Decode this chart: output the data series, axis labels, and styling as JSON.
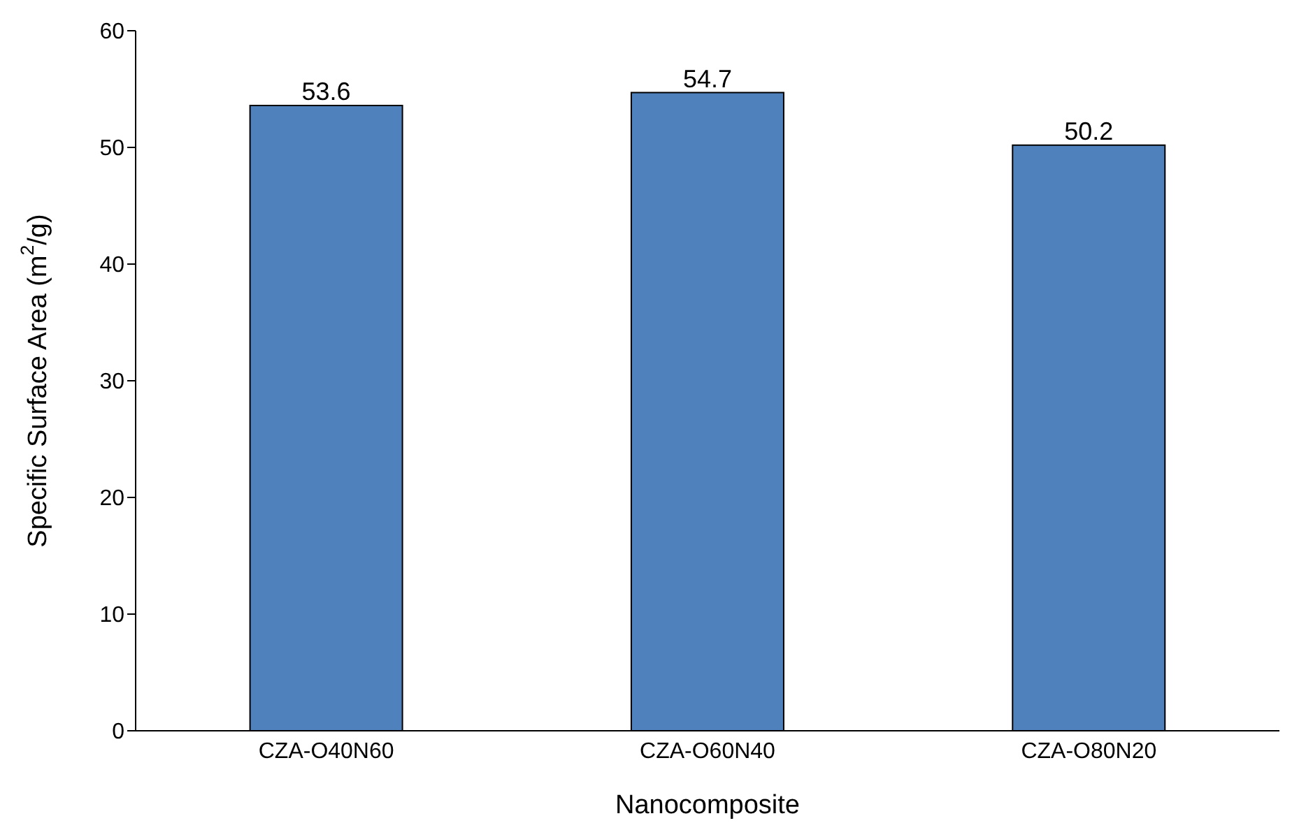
{
  "chart_data": {
    "type": "bar",
    "xlabel": "Nanocomposite",
    "ylabel": "Specific Surface Area (m$^{2}$/g)",
    "categories": [
      "CZA-O40N60",
      "CZA-O60N40",
      "CZA-O80N20"
    ],
    "values": [
      53.6,
      54.7,
      50.2
    ],
    "color": "#4f81bd",
    "ylim": [
      0,
      60
    ],
    "yticks": [
      0,
      10,
      20,
      30,
      40,
      50,
      60
    ],
    "grid": false,
    "legend": false,
    "data_labels": true
  }
}
